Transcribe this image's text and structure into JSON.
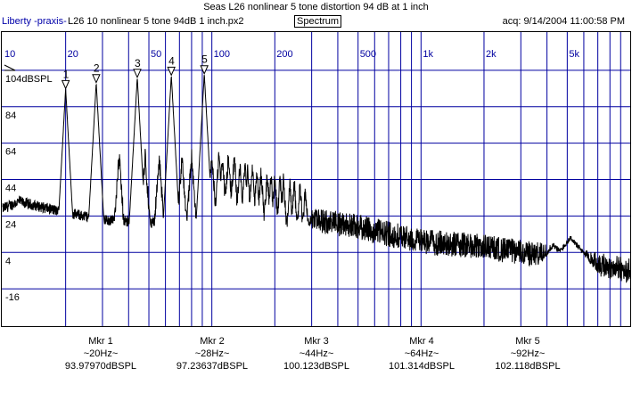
{
  "header": {
    "title": "Seas L26 nonlinear 5 tone distortion 94 dB at 1 inch",
    "brand": "Liberty -praxis-",
    "file": "L26 10 nonlinear 5 tone 94dB 1 inch.px2",
    "mode": "Spectrum",
    "acq": "acq: 9/14/2004 11:00:58 PM"
  },
  "colors": {
    "grid": "#0000a0",
    "trace": "#000000",
    "label": "#0000a0"
  },
  "chart_data": {
    "type": "line",
    "title": "Seas L26 nonlinear 5 tone distortion 94 dB at 1 inch",
    "xscale": "log",
    "xlim": [
      10,
      10000
    ],
    "ylim": [
      -36,
      124
    ],
    "x_tick_labels": [
      {
        "v": 10,
        "t": "10"
      },
      {
        "v": 20,
        "t": "20"
      },
      {
        "v": 50,
        "t": "50"
      },
      {
        "v": 100,
        "t": "100"
      },
      {
        "v": 200,
        "t": "200"
      },
      {
        "v": 500,
        "t": "500"
      },
      {
        "v": 1000,
        "t": "1k"
      },
      {
        "v": 2000,
        "t": "2k"
      },
      {
        "v": 5000,
        "t": "5k"
      }
    ],
    "y_tick_labels": [
      {
        "v": 104,
        "t": "104dBSPL"
      },
      {
        "v": 84,
        "t": "84"
      },
      {
        "v": 64,
        "t": "64"
      },
      {
        "v": 44,
        "t": "44"
      },
      {
        "v": 24,
        "t": "24"
      },
      {
        "v": 4,
        "t": "4"
      },
      {
        "v": -16,
        "t": "-16"
      }
    ],
    "floor_envelope": [
      [
        10,
        28
      ],
      [
        12,
        32
      ],
      [
        14,
        30
      ],
      [
        18,
        27
      ],
      [
        30,
        22
      ],
      [
        60,
        20
      ],
      [
        100,
        16
      ],
      [
        200,
        18
      ],
      [
        300,
        22
      ],
      [
        500,
        18
      ],
      [
        1000,
        10
      ],
      [
        2000,
        7
      ],
      [
        4000,
        2
      ],
      [
        10000,
        -6
      ]
    ],
    "markers": [
      {
        "n": "1",
        "label": "Mkr 1",
        "freq": 20,
        "freq_text": "~20Hz~",
        "level": 93.9797,
        "level_text": "93.97970dBSPL"
      },
      {
        "n": "2",
        "label": "Mkr 2",
        "freq": 28,
        "freq_text": "~28Hz~",
        "level": 97.23637,
        "level_text": "97.23637dBSPL"
      },
      {
        "n": "3",
        "label": "Mkr 3",
        "freq": 44,
        "freq_text": "~44Hz~",
        "level": 100.123,
        "level_text": "100.123dBSPL"
      },
      {
        "n": "4",
        "label": "Mkr 4",
        "freq": 64,
        "freq_text": "~64Hz~",
        "level": 101.314,
        "level_text": "101.314dBSPL"
      },
      {
        "n": "5",
        "label": "Mkr 5",
        "freq": 92,
        "freq_text": "~92Hz~",
        "level": 102.118,
        "level_text": "102.118dBSPL"
      }
    ]
  }
}
